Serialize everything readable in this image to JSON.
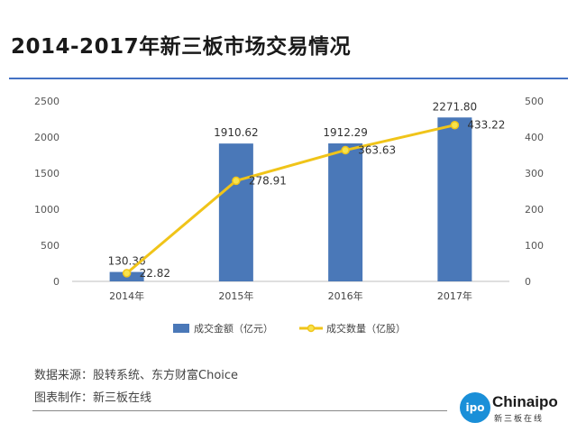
{
  "title": "2014-2017年新三板市场交易情况",
  "chart_data": {
    "type": "bar",
    "categories": [
      "2014年",
      "2015年",
      "2016年",
      "2017年"
    ],
    "series": [
      {
        "name": "成交金额（亿元）",
        "type": "bar",
        "axis": "left",
        "values": [
          130.36,
          1910.62,
          1912.29,
          2271.8
        ],
        "labels": [
          "130.36",
          "1910.62",
          "1912.29",
          "2271.80"
        ]
      },
      {
        "name": "成交数量（亿股）",
        "type": "line",
        "axis": "right",
        "values": [
          22.82,
          278.91,
          363.63,
          433.22
        ],
        "labels": [
          "22.82",
          "278.91",
          "363.63",
          "433.22"
        ]
      }
    ],
    "y_left": {
      "ticks": [
        "0",
        "500",
        "1000",
        "1500",
        "2000",
        "2500"
      ],
      "range": [
        0,
        2500
      ]
    },
    "y_right": {
      "ticks": [
        "0",
        "100",
        "200",
        "300",
        "400",
        "500"
      ],
      "range": [
        0,
        500
      ]
    },
    "legend_position": "bottom",
    "grid": false,
    "colors": {
      "bar": "#4a78b8",
      "line": "#f0c419",
      "marker_fill": "#f7e34d"
    }
  },
  "source": "数据来源：股转系统、东方财富Choice",
  "maker": "图表制作：新三板在线",
  "logo": {
    "mark": "ipo",
    "word": "Chinaipo",
    "sub": "新三板在线"
  }
}
